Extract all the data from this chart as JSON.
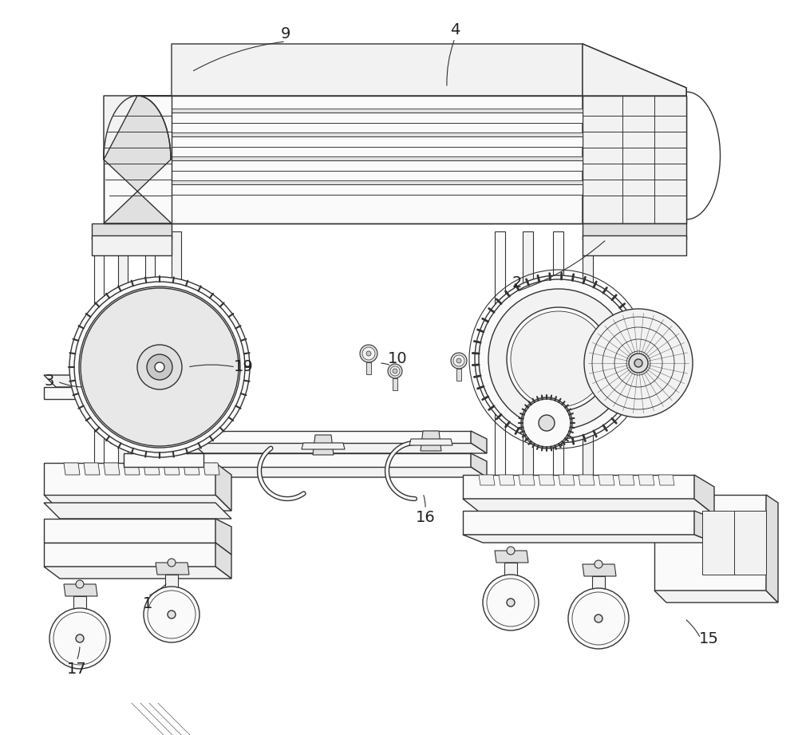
{
  "bg_color": "#ffffff",
  "line_color": "#333333",
  "lw": 1.0,
  "fill_light": "#f2f2f2",
  "fill_mid": "#e0e0e0",
  "fill_dark": "#c8c8c8",
  "fill_white": "#fafafa"
}
